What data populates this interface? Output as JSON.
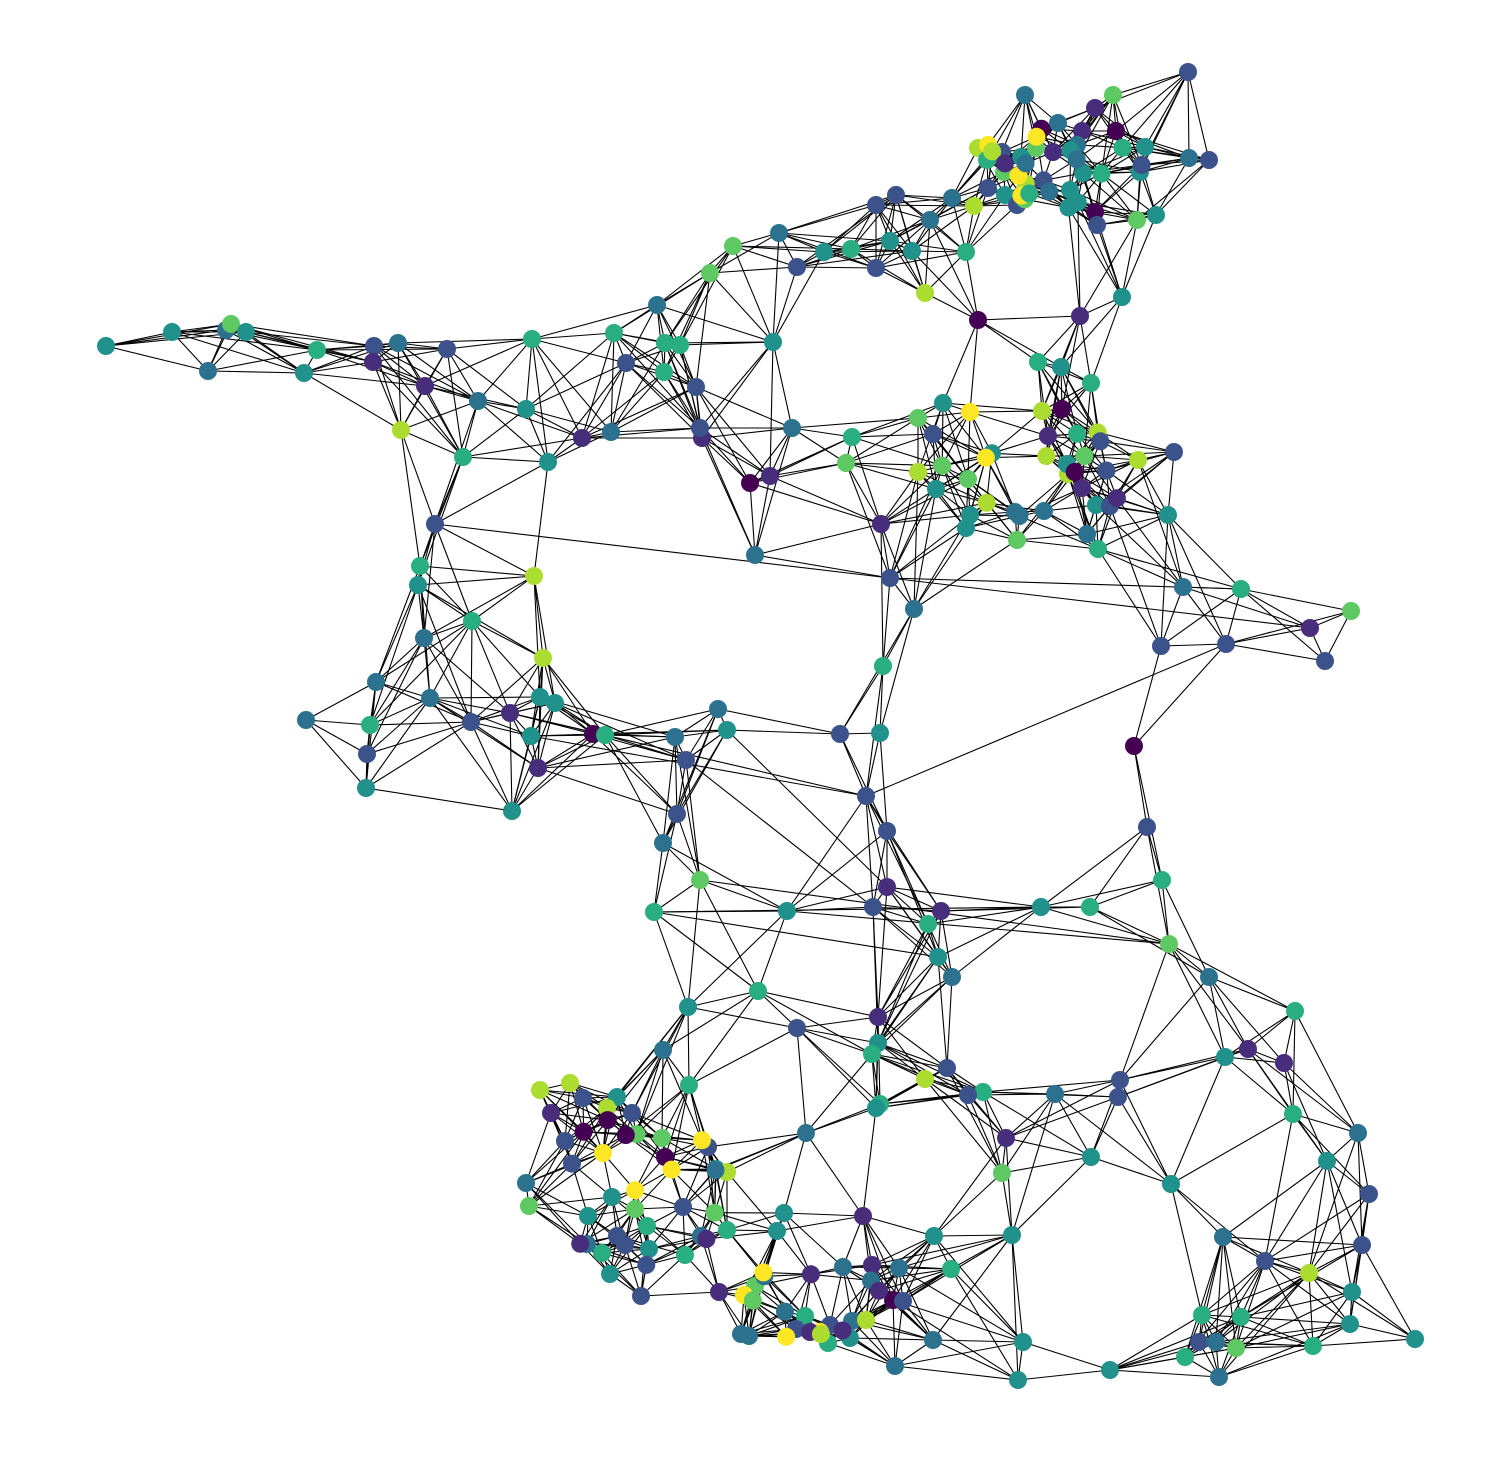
{
  "palette": {
    "p0": "#440154",
    "p1": "#472d7b",
    "p2": "#3b528b",
    "p3": "#2c728e",
    "p4": "#21918c",
    "p5": "#28ae80",
    "p6": "#5ec962",
    "p7": "#addc30",
    "p8": "#fde725",
    "edge_color": "#000000",
    "background": "#ffffff"
  },
  "graph": {
    "node_count": 330,
    "shape": "network",
    "has_axes": false,
    "has_legend": false,
    "colormap": "viridis"
  }
}
